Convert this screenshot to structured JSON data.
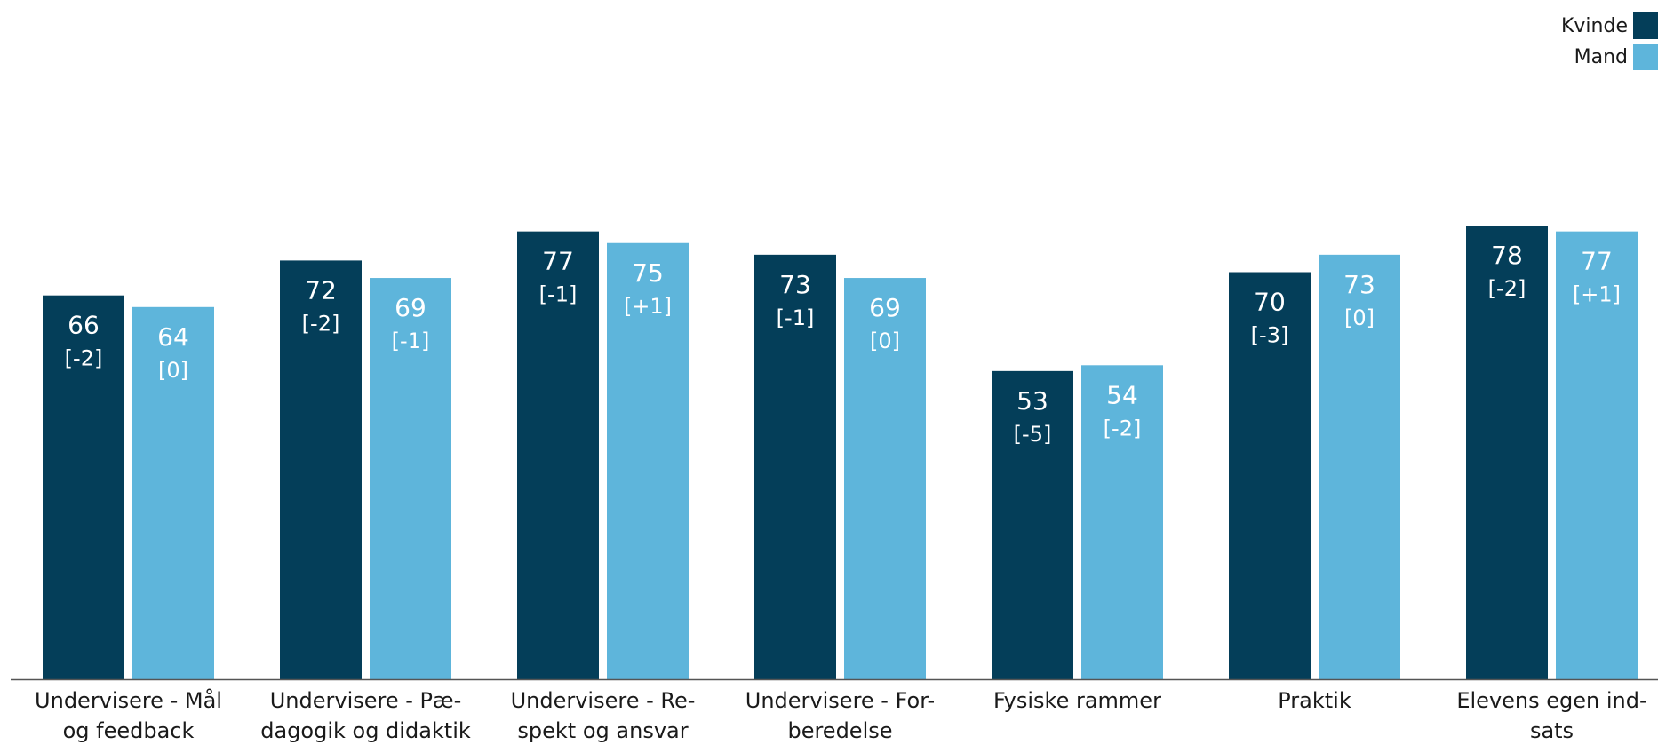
{
  "chart_data": {
    "type": "bar",
    "categories": [
      [
        "Undervisere - Mål",
        "og feedback"
      ],
      [
        "Undervisere - Pæ-",
        "dagogik og didaktik"
      ],
      [
        "Undervisere - Re-",
        "spekt og ansvar"
      ],
      [
        "Undervisere - For-",
        "beredelse"
      ],
      [
        "Fysiske rammer"
      ],
      [
        "Praktik"
      ],
      [
        "Elevens egen ind-",
        "sats"
      ]
    ],
    "series": [
      {
        "name": "Kvinde",
        "color": "#043e59",
        "values": [
          66,
          72,
          77,
          73,
          53,
          70,
          78
        ],
        "changes": [
          "[-2]",
          "[-2]",
          "[-1]",
          "[-1]",
          "[-5]",
          "[-3]",
          "[-2]"
        ]
      },
      {
        "name": "Mand",
        "color": "#5eb5db",
        "values": [
          64,
          69,
          75,
          69,
          54,
          73,
          77
        ],
        "changes": [
          "[0]",
          "[-1]",
          "[+1]",
          "[0]",
          "[-2]",
          "[0]",
          "[+1]"
        ]
      }
    ],
    "ylim": [
      0,
      100
    ],
    "grid": false,
    "legend": "top-right",
    "axis_color": "#555555"
  }
}
